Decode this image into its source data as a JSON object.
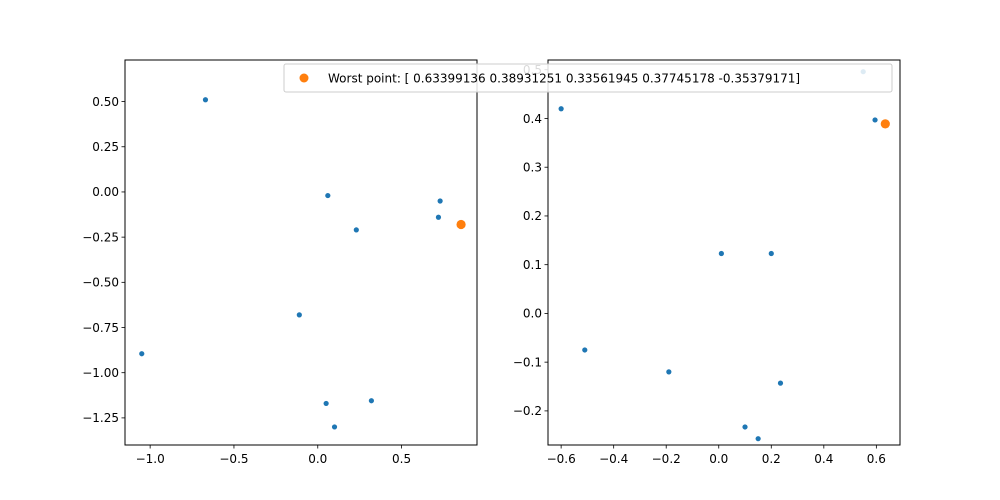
{
  "chart_data": [
    {
      "type": "scatter",
      "xlim": [
        -1.15,
        0.95
      ],
      "ylim": [
        -1.4,
        0.73
      ],
      "xticks": [
        -1.0,
        -0.5,
        0.0,
        0.5
      ],
      "xtick_labels": [
        "−1.0",
        "−0.5",
        "0.0",
        "0.5"
      ],
      "yticks": [
        0.5,
        0.25,
        0.0,
        -0.25,
        -0.5,
        -0.75,
        -1.0,
        -1.25
      ],
      "ytick_labels": [
        "0.50",
        "0.25",
        "0.00",
        "−0.25",
        "−0.50",
        "−0.75",
        "−1.00",
        "−1.25"
      ],
      "grid": false,
      "series": [
        {
          "color": "#1f77b4",
          "marker": "small-dot",
          "points": [
            {
              "x": -0.67,
              "y": 0.51
            },
            {
              "x": 0.06,
              "y": -0.02
            },
            {
              "x": 0.73,
              "y": -0.05
            },
            {
              "x": 0.72,
              "y": -0.14
            },
            {
              "x": 0.23,
              "y": -0.21
            },
            {
              "x": -0.11,
              "y": -0.68
            },
            {
              "x": -1.05,
              "y": -0.895
            },
            {
              "x": 0.32,
              "y": -1.155
            },
            {
              "x": 0.05,
              "y": -1.17
            },
            {
              "x": 0.1,
              "y": -1.3
            }
          ]
        },
        {
          "color": "#ff7f0e",
          "marker": "large-dot",
          "points": [
            {
              "x": 0.855,
              "y": -0.18
            }
          ]
        }
      ]
    },
    {
      "type": "scatter",
      "xlim": [
        -0.65,
        0.69
      ],
      "ylim": [
        -0.27,
        0.52
      ],
      "xticks": [
        -0.6,
        -0.4,
        -0.2,
        0.0,
        0.2,
        0.4,
        0.6
      ],
      "xtick_labels": [
        "−0.6",
        "−0.4",
        "−0.2",
        "0.0",
        "0.2",
        "0.4",
        "0.6"
      ],
      "yticks": [
        0.5,
        0.4,
        0.3,
        0.2,
        0.1,
        0.0,
        -0.1,
        -0.2
      ],
      "ytick_labels": [
        "0.5",
        "0.4",
        "0.3",
        "0.2",
        "0.1",
        "0.0",
        "−0.1",
        "−0.2"
      ],
      "grid": false,
      "legend": {
        "placement": "top-right",
        "entries": [
          {
            "label": "Worst point: [ 0.63399136  0.38931251  0.33561945  0.37745178 -0.35379171]",
            "color": "#ff7f0e"
          }
        ]
      },
      "series": [
        {
          "color": "#1f77b4",
          "marker": "small-dot",
          "points": [
            {
              "x": 0.55,
              "y": 0.496
            },
            {
              "x": -0.6,
              "y": 0.42
            },
            {
              "x": 0.595,
              "y": 0.397
            },
            {
              "x": 0.01,
              "y": 0.123
            },
            {
              "x": 0.2,
              "y": 0.123
            },
            {
              "x": -0.51,
              "y": -0.075
            },
            {
              "x": -0.19,
              "y": -0.12
            },
            {
              "x": 0.235,
              "y": -0.143
            },
            {
              "x": 0.1,
              "y": -0.233
            },
            {
              "x": 0.15,
              "y": -0.257
            }
          ]
        },
        {
          "color": "#ff7f0e",
          "marker": "large-dot",
          "points": [
            {
              "x": 0.634,
              "y": 0.389
            }
          ]
        }
      ]
    }
  ]
}
